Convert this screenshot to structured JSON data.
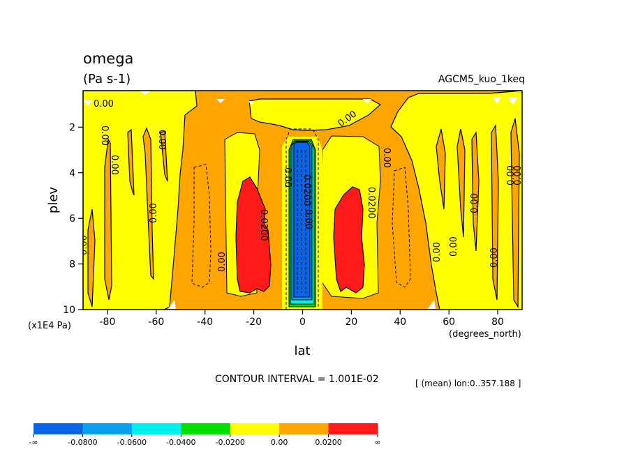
{
  "chart_data": {
    "type": "heatmap",
    "title": "omega",
    "units": "(Pa s-1)",
    "dataset": "AGCM5_kuo_1keq",
    "xlabel": "lat",
    "xunits": "(degrees_north)",
    "ylabel": "plev",
    "yunits": "(x1E4 Pa)",
    "xlim": [
      -90,
      90
    ],
    "ylim": [
      10,
      0.4
    ],
    "x_ticks": [
      -80,
      -60,
      -40,
      -20,
      0,
      20,
      40,
      60,
      80
    ],
    "x_tick_labels": [
      "-80",
      "-60",
      "-40",
      "-20",
      "0",
      "20",
      "40",
      "60",
      "80"
    ],
    "y_ticks": [
      2,
      4,
      6,
      8,
      10
    ],
    "y_tick_labels": [
      "2",
      "4",
      "6",
      "8",
      "10"
    ],
    "contour_interval_text": "CONTOUR INTERVAL = 1.001E-02",
    "mean_text": "[ (mean) lon:0..357.188 ]",
    "contour_labels": [
      "0.00",
      "0.0200",
      "0.00",
      "0.00",
      "0.00",
      "0.00",
      "0.00",
      "0.0200",
      "0.0200",
      "0.00",
      "0.00",
      "0.00",
      "0.00",
      "0.00",
      "0.00",
      "0.00",
      "0.00",
      "0.00",
      "0.00",
      "0.00"
    ],
    "colorbar": {
      "colors": [
        "#0a64e8",
        "#0aa0f0",
        "#00f0f0",
        "#00e000",
        "#ffff00",
        "#ffa500",
        "#ff1a1a"
      ],
      "labels": [
        "-∞",
        "-0.0800",
        "-0.0600",
        "-0.0400",
        "-0.0200",
        "0.00",
        "0.0200",
        "∞"
      ]
    },
    "grid": false
  }
}
